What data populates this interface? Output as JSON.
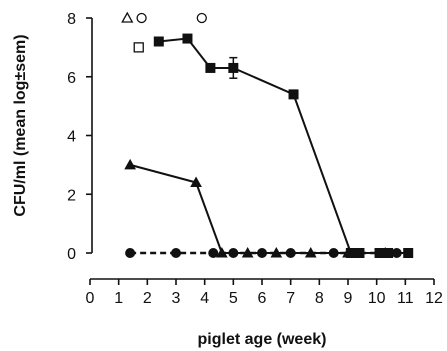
{
  "chart_data": {
    "type": "line",
    "xlabel": "piglet age (week)",
    "ylabel": "CFU/ml (mean log±sem)",
    "xlim": [
      0,
      12
    ],
    "ylim": [
      0,
      8
    ],
    "x_ticks": [
      "0",
      "1",
      "2",
      "3",
      "4",
      "5",
      "6",
      "7",
      "8",
      "9",
      "10",
      "11",
      "12"
    ],
    "y_ticks": [
      "0",
      "2",
      "4",
      "6",
      "8"
    ],
    "series": [
      {
        "marker": "square",
        "line_style": "solid",
        "color": "#111111",
        "points": [
          {
            "x": 2.4,
            "y": 7.2
          },
          {
            "x": 3.4,
            "y": 7.3
          },
          {
            "x": 4.2,
            "y": 6.3
          },
          {
            "x": 5.0,
            "y": 6.3,
            "err": 0.35
          },
          {
            "x": 7.1,
            "y": 5.4
          },
          {
            "x": 9.1,
            "y": 0.0
          },
          {
            "x": 9.4,
            "y": 0.0
          },
          {
            "x": 10.1,
            "y": 0.0
          },
          {
            "x": 10.4,
            "y": 0.0
          },
          {
            "x": 11.1,
            "y": 0.0
          }
        ]
      },
      {
        "marker": "triangle",
        "line_style": "solid",
        "color": "#111111",
        "points": [
          {
            "x": 1.4,
            "y": 3.0
          },
          {
            "x": 3.7,
            "y": 2.4
          },
          {
            "x": 4.6,
            "y": 0.0
          },
          {
            "x": 5.5,
            "y": 0.0
          },
          {
            "x": 6.5,
            "y": 0.0
          },
          {
            "x": 7.7,
            "y": 0.0
          },
          {
            "x": 9.0,
            "y": 0.0
          },
          {
            "x": 10.3,
            "y": 0.0
          }
        ]
      },
      {
        "marker": "circle",
        "line_style": "dashed",
        "color": "#111111",
        "points": [
          {
            "x": 1.4,
            "y": 0.0
          },
          {
            "x": 3.0,
            "y": 0.0
          },
          {
            "x": 4.3,
            "y": 0.0
          },
          {
            "x": 5.0,
            "y": 0.0
          },
          {
            "x": 6.0,
            "y": 0.0
          },
          {
            "x": 7.0,
            "y": 0.0
          },
          {
            "x": 8.5,
            "y": 0.0
          },
          {
            "x": 9.3,
            "y": 0.0
          },
          {
            "x": 10.7,
            "y": 0.0
          }
        ]
      }
    ],
    "open_markers": [
      {
        "marker": "triangle",
        "x": 1.3,
        "y": 8.0
      },
      {
        "marker": "circle",
        "x": 1.8,
        "y": 8.0
      },
      {
        "marker": "circle",
        "x": 3.9,
        "y": 8.0
      },
      {
        "marker": "square",
        "x": 1.7,
        "y": 7.0
      }
    ]
  }
}
